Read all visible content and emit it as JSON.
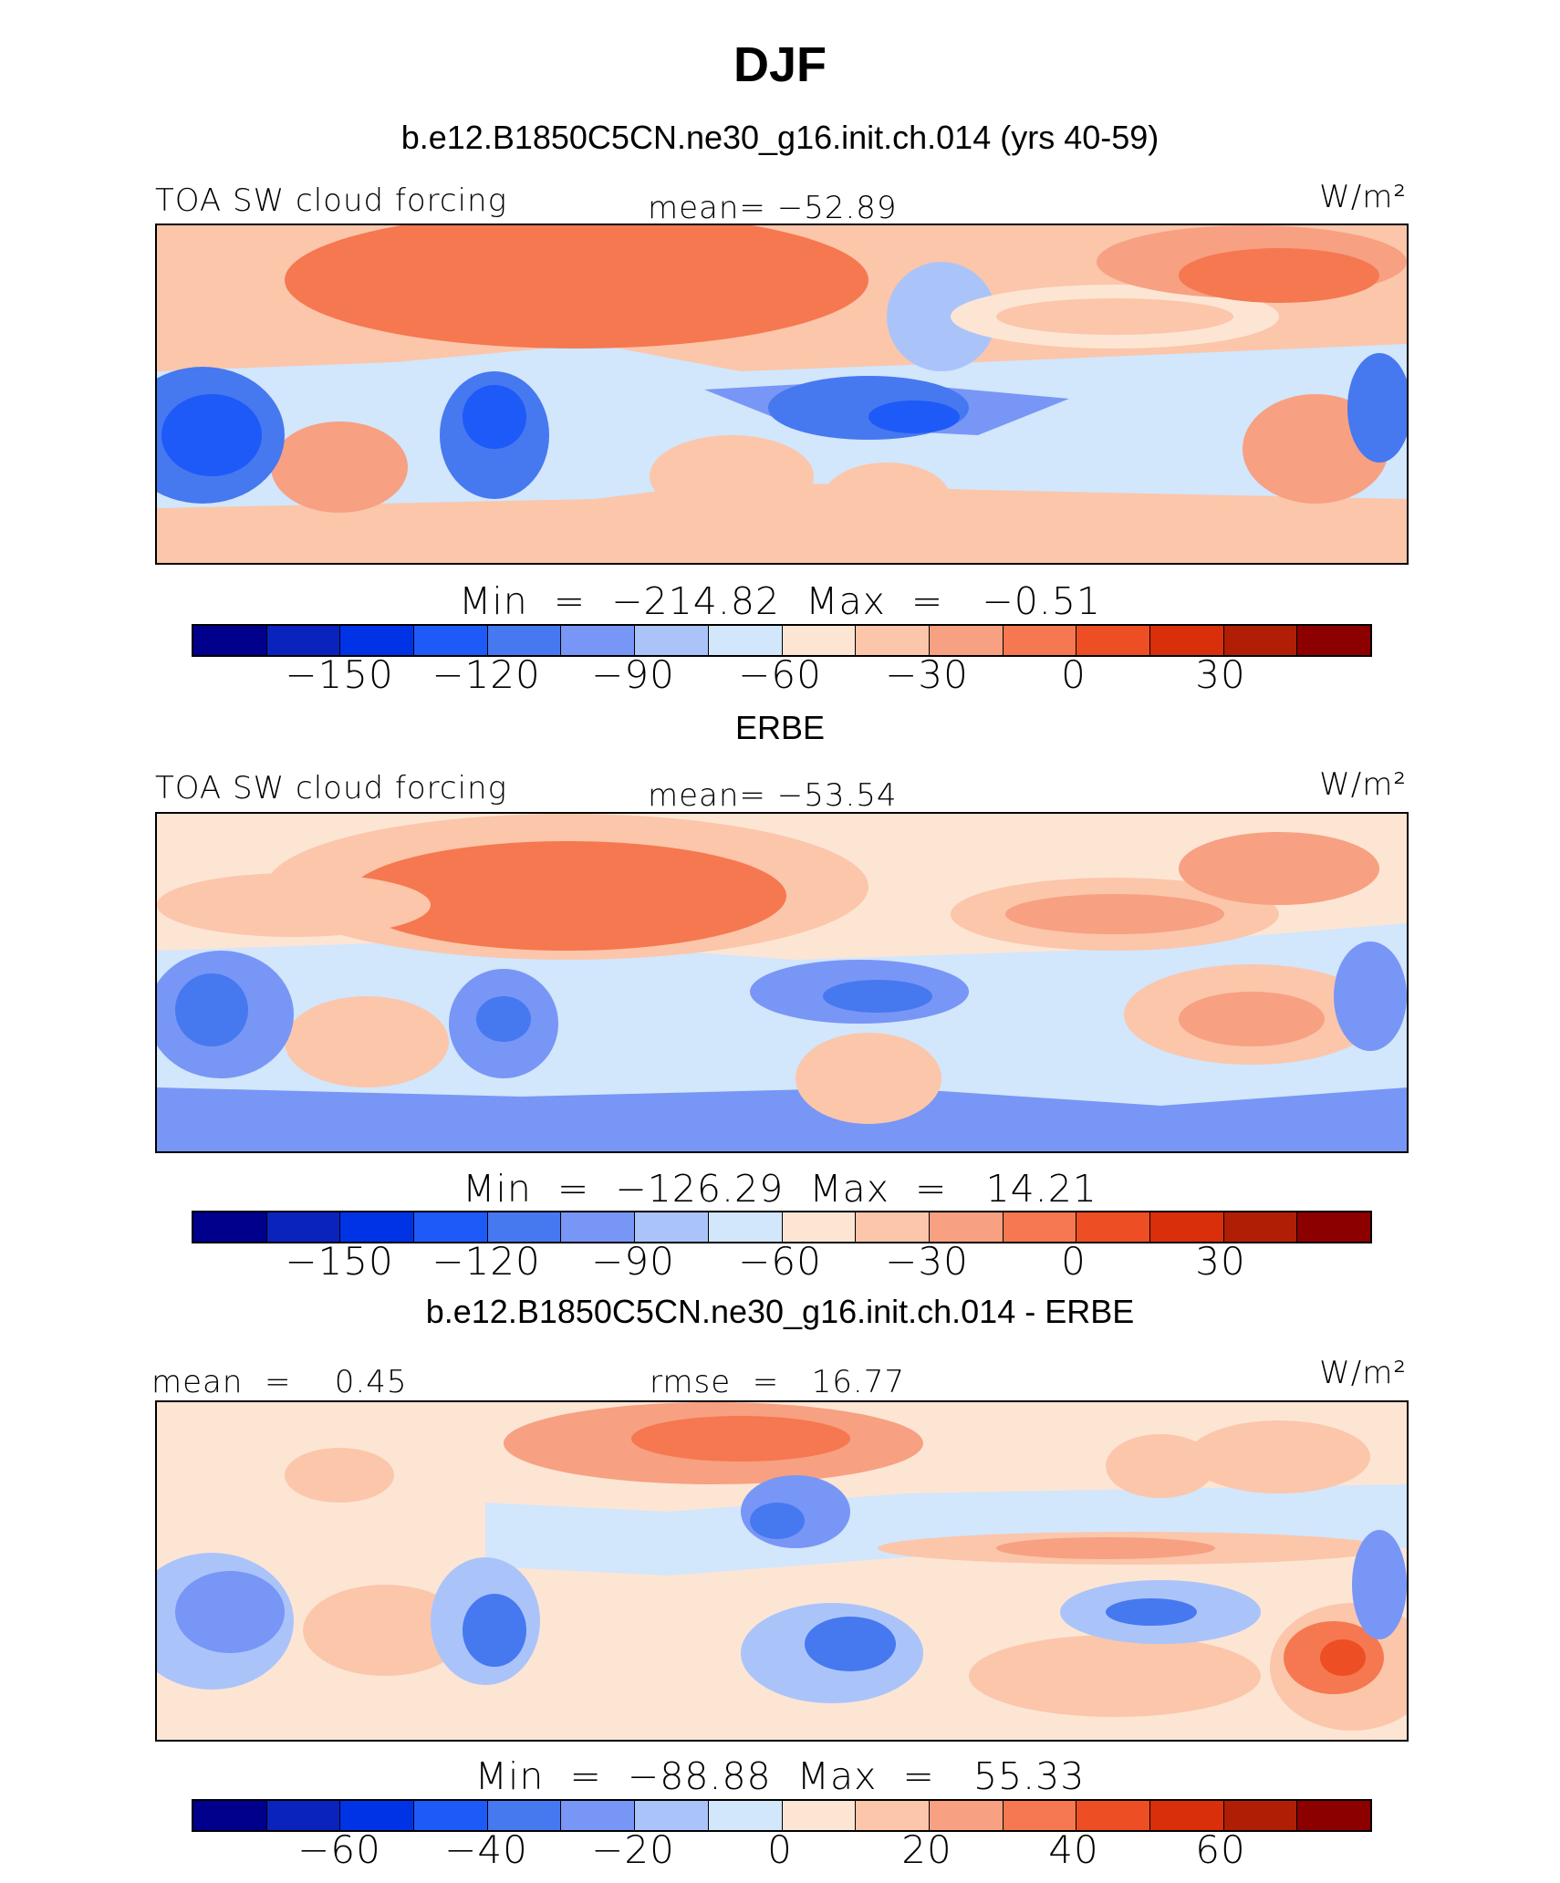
{
  "figure": {
    "title": "DJF",
    "units": "W/m²",
    "colors": [
      "#00008c",
      "#0a23bd",
      "#0032e6",
      "#1e5af8",
      "#4678f0",
      "#7896f5",
      "#aac4fa",
      "#d2e6fc",
      "#fde5d4",
      "#fbc6aa",
      "#f7a082",
      "#f57850",
      "#ee4e23",
      "#d92f0a",
      "#b01e05",
      "#8c0000"
    ]
  },
  "panels": [
    {
      "subtitle": "b.e12.B1850C5CN.ne30_g16.init.ch.014 (yrs 40-59)",
      "left_label": "TOA SW cloud forcing",
      "center_label": "mean= −52.89",
      "units": "W/m²",
      "minmax": "Min  =  −214.82  Max  =   −0.51",
      "cbar_ticks": [
        "−150",
        "−120",
        "−90",
        "−60",
        "−30",
        "0",
        "30"
      ]
    },
    {
      "subtitle": "ERBE",
      "left_label": "TOA SW cloud forcing",
      "center_label": "mean= −53.54",
      "units": "W/m²",
      "minmax": "Min  =  −126.29  Max  =   14.21",
      "cbar_ticks": [
        "−150",
        "−120",
        "−90",
        "−60",
        "−30",
        "0",
        "30"
      ]
    },
    {
      "subtitle": "b.e12.B1850C5CN.ne30_g16.init.ch.014 - ERBE",
      "left_label": "mean  =    0.45",
      "center_label": "rmse  =   16.77",
      "units": "W/m²",
      "minmax": "Min  =  −88.88  Max  =   55.33",
      "cbar_ticks": [
        "−60",
        "−40",
        "−20",
        "0",
        "20",
        "40",
        "60"
      ]
    }
  ],
  "chart_data": [
    {
      "type": "heatmap",
      "title": "TOA SW cloud forcing",
      "subtitle": "b.e12.B1850C5CN.ne30_g16.init.ch.014 (yrs 40-59)",
      "season": "DJF",
      "units": "W/m²",
      "mean": -52.89,
      "min": -214.82,
      "max": -0.51,
      "colorbar_levels": [
        -150,
        -135,
        -120,
        -105,
        -90,
        -75,
        -60,
        -45,
        -30,
        -15,
        0,
        15,
        30
      ],
      "colorbar_tick_labels": [
        -150,
        -120,
        -90,
        -60,
        -30,
        0,
        30
      ]
    },
    {
      "type": "heatmap",
      "title": "TOA SW cloud forcing",
      "subtitle": "ERBE",
      "season": "DJF",
      "units": "W/m²",
      "mean": -53.54,
      "min": -126.29,
      "max": 14.21,
      "colorbar_levels": [
        -150,
        -135,
        -120,
        -105,
        -90,
        -75,
        -60,
        -45,
        -30,
        -15,
        0,
        15,
        30
      ],
      "colorbar_tick_labels": [
        -150,
        -120,
        -90,
        -60,
        -30,
        0,
        30
      ]
    },
    {
      "type": "heatmap",
      "title": "",
      "subtitle": "b.e12.B1850C5CN.ne30_g16.init.ch.014 - ERBE",
      "season": "DJF",
      "units": "W/m²",
      "mean": 0.45,
      "rmse": 16.77,
      "min": -88.88,
      "max": 55.33,
      "colorbar_levels": [
        -70,
        -60,
        -50,
        -40,
        -30,
        -20,
        -10,
        0,
        10,
        20,
        30,
        40,
        50,
        60,
        70
      ],
      "colorbar_tick_labels": [
        -60,
        -40,
        -20,
        0,
        20,
        40,
        60
      ]
    }
  ]
}
